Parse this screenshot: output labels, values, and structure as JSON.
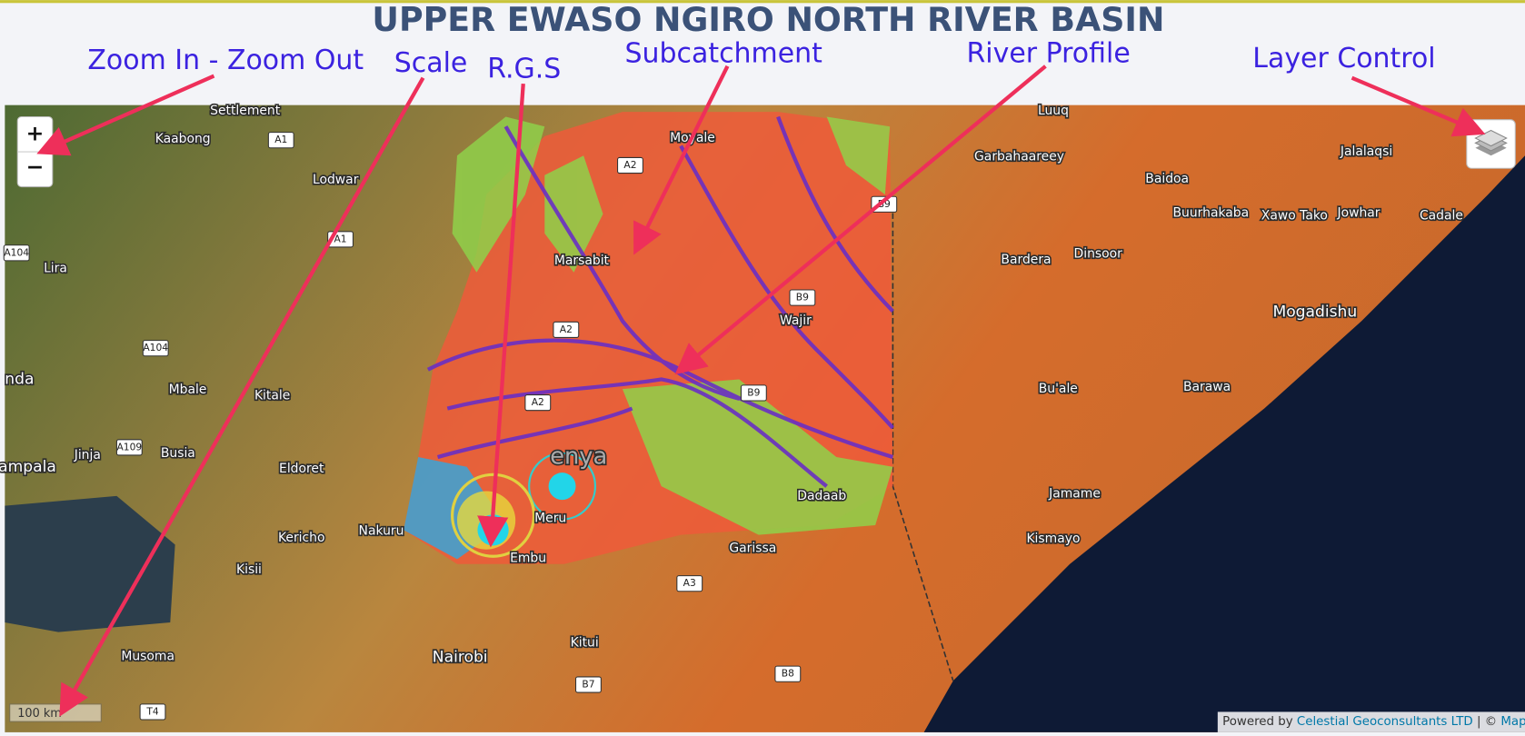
{
  "header": {
    "title": "UPPER EWASO NGIRO NORTH RIVER BASIN"
  },
  "annotations": [
    "Zoom In - Zoom Out",
    "Scale",
    "R.G.S",
    "Subcatchment",
    "River Profile",
    "Layer Control"
  ],
  "controls": {
    "zoom_in": "+",
    "zoom_out": "−"
  },
  "scale": "100 km",
  "map_labels": [
    "Settlement",
    "Kaabong",
    "Lodwar",
    "Lira",
    "Mbale",
    "Kitale",
    "Busia",
    "Jinja",
    "ampala",
    "nda",
    "Eldoret",
    "Kericho",
    "Kisii",
    "Nakuru",
    "Musoma",
    "Nairobi",
    "Kitui",
    "Embu",
    "Meru",
    "Garissa",
    "Marsabit",
    "Moyale",
    "Wajir",
    "Dadaab",
    "Garbahaareey",
    "Baidoa",
    "Buurhakaba",
    "Xawo Tako",
    "Jowhar",
    "Jalalaqsi",
    "Bardera",
    "Dinsoor",
    "Mogadishu",
    "Bu'ale",
    "Barawa",
    "Jamame",
    "Kismayo",
    "Cadale",
    "Luuq",
    "enya"
  ],
  "road_labels": [
    "A1",
    "A1",
    "A104",
    "A104",
    "A109",
    "A2",
    "A2",
    "A2",
    "B9",
    "B9",
    "B9",
    "A3",
    "B7",
    "B8",
    "T4"
  ],
  "attribution": {
    "prefix": "Powered by",
    "link1": "Celestial Geoconsultants LTD",
    "separator": "| ©",
    "link2": "Mapbox"
  }
}
